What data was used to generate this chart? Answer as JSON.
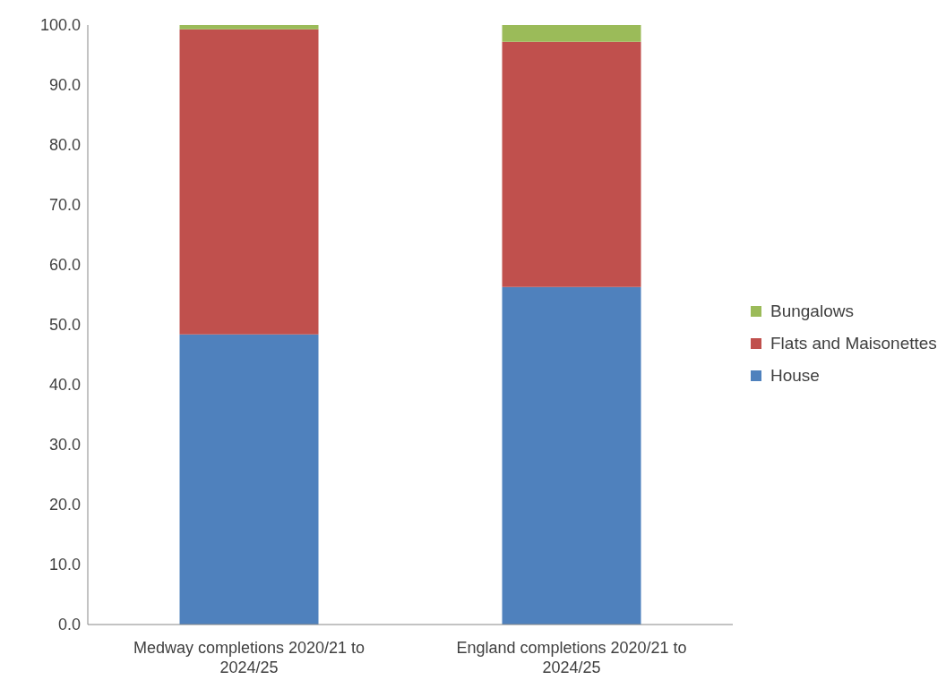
{
  "chart_data": {
    "type": "bar",
    "stacked": true,
    "categories": [
      "Medway completions 2020/21 to 2024/25",
      "England completions 2020/21 to 2024/25"
    ],
    "series": [
      {
        "name": "House",
        "color": "#4f81bd",
        "values": [
          48.4,
          56.3
        ]
      },
      {
        "name": "Flats and Maisonettes",
        "color": "#c0504d",
        "values": [
          50.9,
          40.9
        ]
      },
      {
        "name": "Bungalows",
        "color": "#9bbb59",
        "values": [
          0.7,
          2.8
        ]
      }
    ],
    "ylim": [
      0,
      100
    ],
    "yticks": [
      {
        "value": 0,
        "label": "0.0"
      },
      {
        "value": 10,
        "label": "10.0"
      },
      {
        "value": 20,
        "label": "20.0"
      },
      {
        "value": 30,
        "label": "30.0"
      },
      {
        "value": 40,
        "label": "40.0"
      },
      {
        "value": 50,
        "label": "50.0"
      },
      {
        "value": 60,
        "label": "60.0"
      },
      {
        "value": 70,
        "label": "70.0"
      },
      {
        "value": 80,
        "label": "80.0"
      },
      {
        "value": 90,
        "label": "90.0"
      },
      {
        "value": 100,
        "label": "100.0"
      }
    ],
    "grid": false,
    "legend": "right"
  }
}
